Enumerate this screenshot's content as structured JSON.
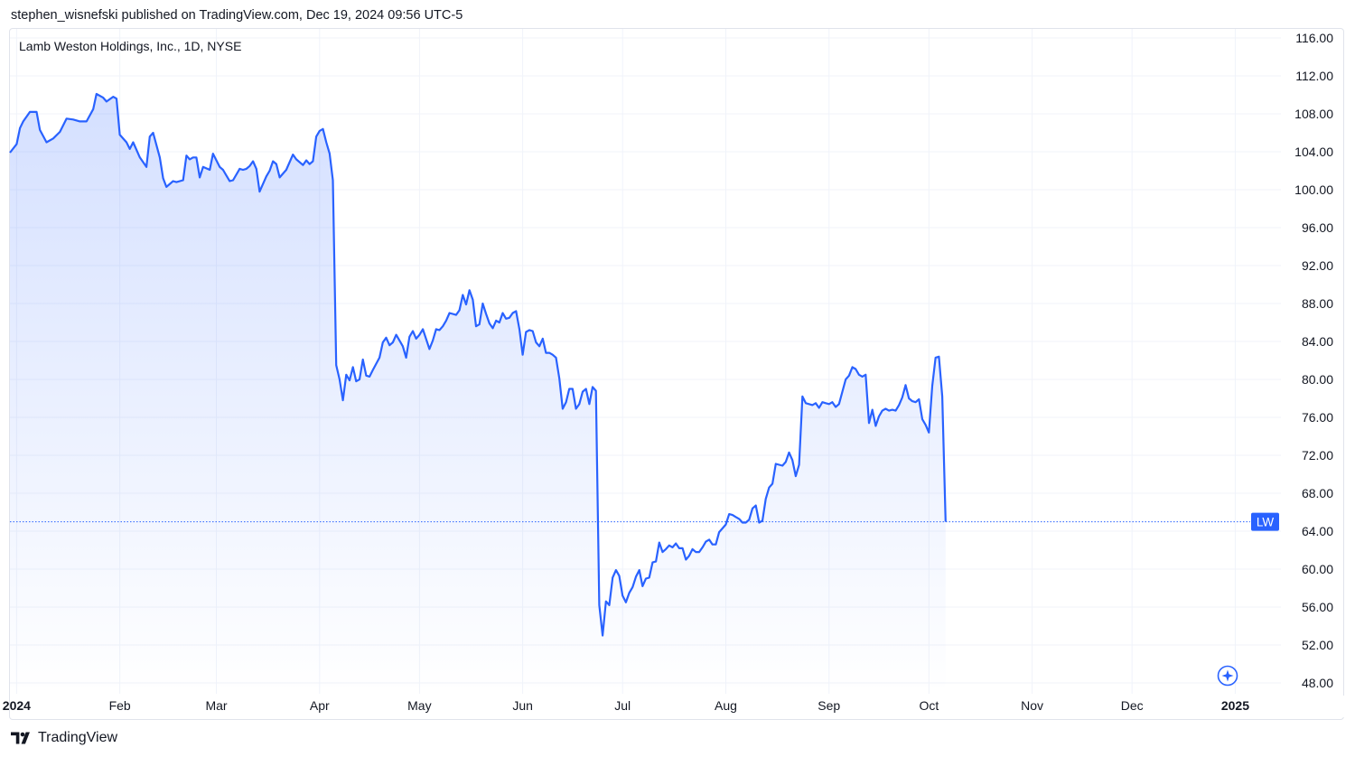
{
  "header": {
    "published_line": "stephen_wisnefski published on TradingView.com, Dec 19, 2024 09:56 UTC-5"
  },
  "symbol_title": "Lamb Weston Holdings, Inc., 1D, NYSE",
  "footer": {
    "brand": "TradingView"
  },
  "colors": {
    "line": "#2962ff",
    "fill_top": "#2962ff",
    "grid": "#f0f3fa",
    "axis_text": "#131722",
    "badge_bg": "#2962ff"
  },
  "chart_data": {
    "type": "area",
    "symbol_badge": "LW",
    "last_price": 64.99,
    "ylim": [
      47,
      117
    ],
    "y_ticks": [
      "116.00",
      "112.00",
      "108.00",
      "104.00",
      "100.00",
      "96.00",
      "92.00",
      "88.00",
      "84.00",
      "80.00",
      "76.00",
      "72.00",
      "68.00",
      "64.00",
      "60.00",
      "56.00",
      "52.00",
      "48.00"
    ],
    "x_ticks": [
      {
        "label": "2024",
        "day": 1,
        "bold": true
      },
      {
        "label": "Feb",
        "day": 32
      },
      {
        "label": "Mar",
        "day": 61
      },
      {
        "label": "Apr",
        "day": 92
      },
      {
        "label": "May",
        "day": 122
      },
      {
        "label": "Jun",
        "day": 153
      },
      {
        "label": "Jul",
        "day": 183
      },
      {
        "label": "Aug",
        "day": 214
      },
      {
        "label": "Sep",
        "day": 245
      },
      {
        "label": "Oct",
        "day": 275
      },
      {
        "label": "Nov",
        "day": 306
      },
      {
        "label": "Dec",
        "day": 336
      },
      {
        "label": "2025",
        "day": 367,
        "bold": true
      }
    ],
    "xlim_days": [
      -1,
      364
    ],
    "x_unit": "day of year 2024 (Jan 1 = 1)",
    "series": [
      {
        "points": [
          [
            -1,
            103.9
          ],
          [
            1,
            104.8
          ],
          [
            2,
            106.5
          ],
          [
            3,
            107.2
          ],
          [
            5,
            108.2
          ],
          [
            7,
            108.2
          ],
          [
            8,
            106.3
          ],
          [
            10,
            105.0
          ],
          [
            12,
            105.4
          ],
          [
            14,
            106.1
          ],
          [
            16,
            107.5
          ],
          [
            18,
            107.4
          ],
          [
            20,
            107.2
          ],
          [
            22,
            107.2
          ],
          [
            24,
            108.5
          ],
          [
            25,
            110.1
          ],
          [
            27,
            109.7
          ],
          [
            28,
            109.3
          ],
          [
            30,
            109.8
          ],
          [
            31,
            109.6
          ],
          [
            32,
            105.8
          ],
          [
            34,
            105.0
          ],
          [
            35,
            104.3
          ],
          [
            36,
            105.0
          ],
          [
            38,
            103.4
          ],
          [
            40,
            102.4
          ],
          [
            41,
            105.6
          ],
          [
            42,
            106.0
          ],
          [
            44,
            103.4
          ],
          [
            45,
            101.2
          ],
          [
            46,
            100.3
          ],
          [
            48,
            100.9
          ],
          [
            49,
            100.8
          ],
          [
            51,
            101.0
          ],
          [
            52,
            103.6
          ],
          [
            53,
            103.2
          ],
          [
            54,
            103.4
          ],
          [
            55,
            103.4
          ],
          [
            56,
            101.3
          ],
          [
            57,
            102.4
          ],
          [
            59,
            102.1
          ],
          [
            60,
            103.8
          ],
          [
            62,
            102.4
          ],
          [
            63,
            102.1
          ],
          [
            64,
            101.5
          ],
          [
            65,
            100.9
          ],
          [
            66,
            101.0
          ],
          [
            68,
            102.2
          ],
          [
            69,
            102.1
          ],
          [
            70,
            102.2
          ],
          [
            71,
            102.5
          ],
          [
            72,
            103.0
          ],
          [
            73,
            102.2
          ],
          [
            74,
            99.8
          ],
          [
            76,
            101.4
          ],
          [
            77,
            102.0
          ],
          [
            78,
            103.0
          ],
          [
            79,
            102.7
          ],
          [
            80,
            101.3
          ],
          [
            82,
            102.1
          ],
          [
            84,
            103.7
          ],
          [
            85,
            103.2
          ],
          [
            87,
            102.6
          ],
          [
            88,
            103.1
          ],
          [
            89,
            102.7
          ],
          [
            90,
            103.0
          ],
          [
            91,
            105.6
          ],
          [
            92,
            106.2
          ],
          [
            93,
            106.4
          ],
          [
            94,
            105.0
          ],
          [
            95,
            103.8
          ],
          [
            96,
            101.0
          ],
          [
            97,
            81.5
          ],
          [
            98,
            80.0
          ],
          [
            99,
            77.8
          ],
          [
            100,
            80.5
          ],
          [
            101,
            79.9
          ],
          [
            102,
            81.3
          ],
          [
            103,
            79.8
          ],
          [
            104,
            80.0
          ],
          [
            105,
            82.1
          ],
          [
            106,
            80.4
          ],
          [
            107,
            80.3
          ],
          [
            108,
            81.0
          ],
          [
            110,
            82.3
          ],
          [
            111,
            83.9
          ],
          [
            112,
            84.4
          ],
          [
            113,
            83.6
          ],
          [
            114,
            83.9
          ],
          [
            115,
            84.7
          ],
          [
            117,
            83.5
          ],
          [
            118,
            82.3
          ],
          [
            119,
            84.5
          ],
          [
            120,
            85.1
          ],
          [
            121,
            84.3
          ],
          [
            122,
            84.7
          ],
          [
            123,
            85.3
          ],
          [
            125,
            83.2
          ],
          [
            126,
            84.1
          ],
          [
            127,
            85.3
          ],
          [
            128,
            85.2
          ],
          [
            129,
            85.6
          ],
          [
            130,
            86.2
          ],
          [
            131,
            87.0
          ],
          [
            133,
            86.8
          ],
          [
            134,
            87.3
          ],
          [
            135,
            88.9
          ],
          [
            136,
            87.9
          ],
          [
            137,
            89.4
          ],
          [
            138,
            88.4
          ],
          [
            139,
            85.6
          ],
          [
            140,
            85.8
          ],
          [
            141,
            88.0
          ],
          [
            142,
            86.9
          ],
          [
            143,
            85.9
          ],
          [
            144,
            85.4
          ],
          [
            145,
            86.2
          ],
          [
            146,
            86.0
          ],
          [
            147,
            87.0
          ],
          [
            148,
            86.4
          ],
          [
            149,
            86.5
          ],
          [
            150,
            87.0
          ],
          [
            151,
            87.2
          ],
          [
            152,
            85.3
          ],
          [
            153,
            82.6
          ],
          [
            154,
            85.0
          ],
          [
            155,
            85.2
          ],
          [
            156,
            85.1
          ],
          [
            157,
            83.9
          ],
          [
            158,
            83.5
          ],
          [
            159,
            84.3
          ],
          [
            160,
            82.8
          ],
          [
            161,
            82.8
          ],
          [
            162,
            82.6
          ],
          [
            163,
            82.3
          ],
          [
            164,
            80.1
          ],
          [
            165,
            76.9
          ],
          [
            166,
            77.6
          ],
          [
            167,
            79.0
          ],
          [
            168,
            79.0
          ],
          [
            169,
            76.9
          ],
          [
            170,
            77.4
          ],
          [
            171,
            78.7
          ],
          [
            172,
            79.0
          ],
          [
            173,
            77.4
          ],
          [
            174,
            79.2
          ],
          [
            175,
            78.8
          ],
          [
            176,
            56.2
          ],
          [
            177,
            53.0
          ],
          [
            178,
            56.6
          ],
          [
            179,
            56.2
          ],
          [
            180,
            59.1
          ],
          [
            181,
            59.9
          ],
          [
            182,
            59.3
          ],
          [
            183,
            57.2
          ],
          [
            184,
            56.5
          ],
          [
            185,
            57.5
          ],
          [
            186,
            58.1
          ],
          [
            187,
            59.2
          ],
          [
            188,
            59.9
          ],
          [
            189,
            58.2
          ],
          [
            190,
            59.0
          ],
          [
            191,
            59.1
          ],
          [
            192,
            60.7
          ],
          [
            193,
            60.8
          ],
          [
            194,
            62.8
          ],
          [
            195,
            61.8
          ],
          [
            196,
            62.1
          ],
          [
            197,
            62.5
          ],
          [
            198,
            62.3
          ],
          [
            199,
            62.7
          ],
          [
            200,
            62.2
          ],
          [
            201,
            62.2
          ],
          [
            202,
            61.0
          ],
          [
            203,
            61.4
          ],
          [
            204,
            62.1
          ],
          [
            205,
            61.8
          ],
          [
            206,
            61.8
          ],
          [
            207,
            62.3
          ],
          [
            208,
            62.9
          ],
          [
            209,
            63.1
          ],
          [
            210,
            62.6
          ],
          [
            211,
            62.6
          ],
          [
            212,
            63.9
          ],
          [
            213,
            64.3
          ],
          [
            214,
            64.7
          ],
          [
            215,
            65.8
          ],
          [
            216,
            65.7
          ],
          [
            217,
            65.5
          ],
          [
            218,
            65.3
          ],
          [
            219,
            64.9
          ],
          [
            220,
            64.9
          ],
          [
            221,
            65.2
          ],
          [
            222,
            66.4
          ],
          [
            223,
            66.7
          ],
          [
            224,
            64.9
          ],
          [
            225,
            65.1
          ],
          [
            226,
            67.4
          ],
          [
            227,
            68.6
          ],
          [
            228,
            69.0
          ],
          [
            229,
            71.1
          ],
          [
            230,
            71.0
          ],
          [
            231,
            70.9
          ],
          [
            232,
            71.3
          ],
          [
            233,
            72.3
          ],
          [
            234,
            71.5
          ],
          [
            235,
            69.8
          ],
          [
            236,
            71.0
          ],
          [
            237,
            78.2
          ],
          [
            238,
            77.5
          ],
          [
            239,
            77.4
          ],
          [
            240,
            77.3
          ],
          [
            241,
            77.5
          ],
          [
            242,
            77.0
          ],
          [
            243,
            77.6
          ],
          [
            244,
            77.5
          ],
          [
            245,
            77.4
          ],
          [
            246,
            77.6
          ],
          [
            247,
            77.1
          ],
          [
            248,
            77.4
          ],
          [
            249,
            78.7
          ],
          [
            250,
            80.0
          ],
          [
            251,
            80.4
          ],
          [
            252,
            81.3
          ],
          [
            253,
            81.1
          ],
          [
            254,
            80.5
          ],
          [
            255,
            80.3
          ],
          [
            256,
            80.5
          ],
          [
            257,
            75.4
          ],
          [
            258,
            76.8
          ],
          [
            259,
            75.1
          ],
          [
            260,
            76.1
          ],
          [
            261,
            76.7
          ],
          [
            262,
            76.9
          ],
          [
            263,
            76.7
          ],
          [
            264,
            76.8
          ],
          [
            265,
            76.7
          ],
          [
            266,
            77.3
          ],
          [
            267,
            78.1
          ],
          [
            268,
            79.4
          ],
          [
            269,
            78.0
          ],
          [
            270,
            77.7
          ],
          [
            271,
            77.6
          ],
          [
            272,
            77.9
          ],
          [
            273,
            75.8
          ],
          [
            274,
            75.2
          ],
          [
            275,
            74.4
          ],
          [
            276,
            79.3
          ],
          [
            277,
            82.3
          ],
          [
            278,
            82.4
          ],
          [
            279,
            78.2
          ],
          [
            280,
            64.99
          ]
        ]
      }
    ]
  }
}
